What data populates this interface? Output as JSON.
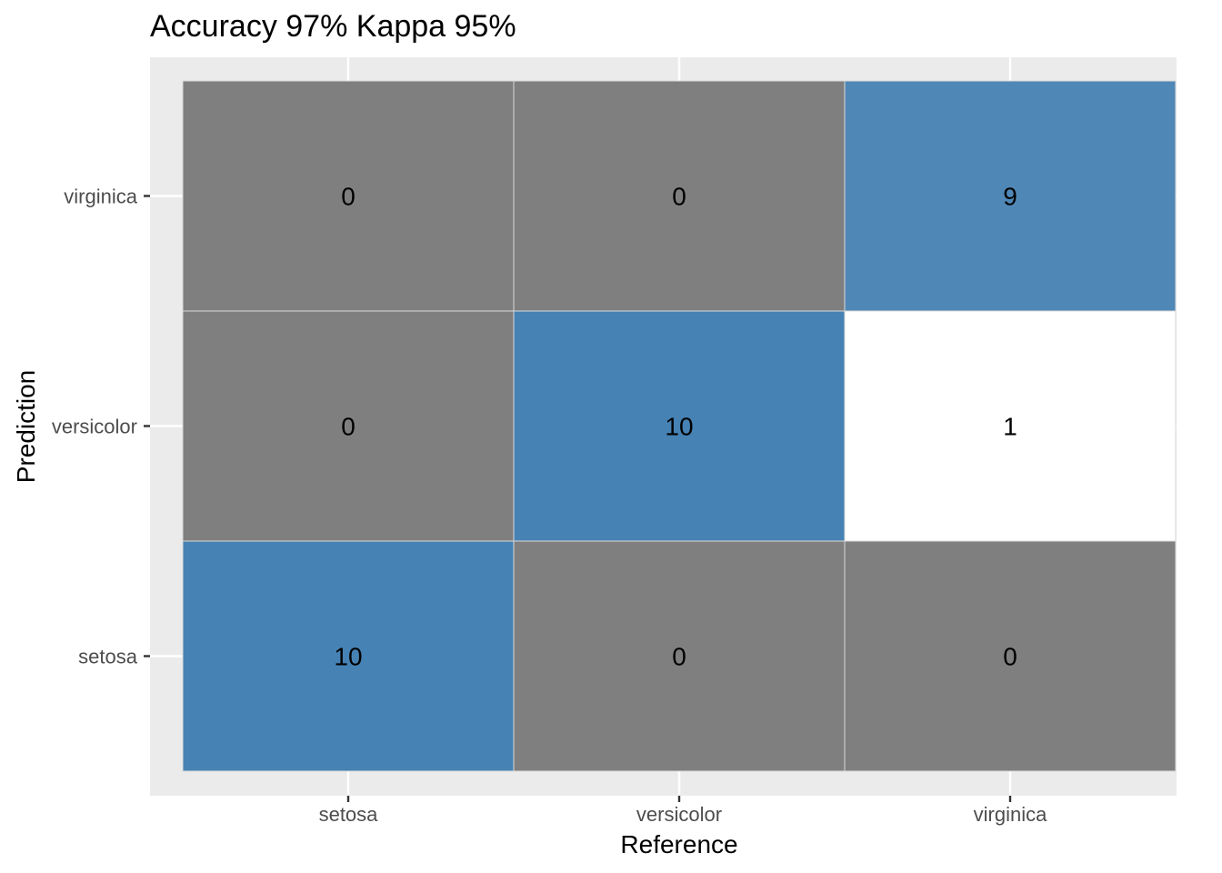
{
  "chart_data": {
    "type": "heatmap",
    "title": "Accuracy 97% Kappa 95%",
    "xlabel": "Reference",
    "ylabel": "Prediction",
    "x_categories": [
      "setosa",
      "versicolor",
      "virginica"
    ],
    "y_categories": [
      "setosa",
      "versicolor",
      "virginica"
    ],
    "cells": [
      {
        "reference": "setosa",
        "prediction": "setosa",
        "value": 10,
        "fill": "#4682B4"
      },
      {
        "reference": "versicolor",
        "prediction": "setosa",
        "value": 0,
        "fill": "#7F7F7F"
      },
      {
        "reference": "virginica",
        "prediction": "setosa",
        "value": 0,
        "fill": "#7F7F7F"
      },
      {
        "reference": "setosa",
        "prediction": "versicolor",
        "value": 0,
        "fill": "#7F7F7F"
      },
      {
        "reference": "versicolor",
        "prediction": "versicolor",
        "value": 10,
        "fill": "#4682B4"
      },
      {
        "reference": "virginica",
        "prediction": "versicolor",
        "value": 1,
        "fill": "#FFFFFF"
      },
      {
        "reference": "setosa",
        "prediction": "virginica",
        "value": 0,
        "fill": "#7F7F7F"
      },
      {
        "reference": "versicolor",
        "prediction": "virginica",
        "value": 0,
        "fill": "#7F7F7F"
      },
      {
        "reference": "virginica",
        "prediction": "virginica",
        "value": 9,
        "fill": "#4F87B6"
      }
    ],
    "panel_background": "#EBEBEB",
    "grid": true,
    "legend": "none"
  }
}
